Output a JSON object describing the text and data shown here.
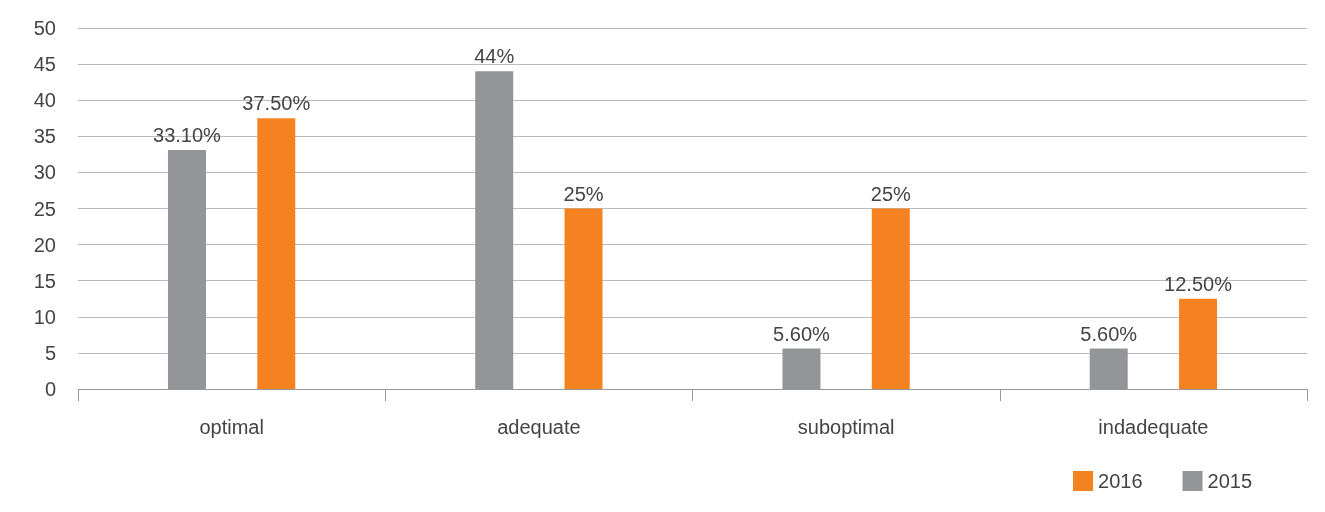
{
  "chart_data": {
    "type": "bar",
    "categories": [
      "optimal",
      "adequate",
      "suboptimal",
      "indadequate"
    ],
    "series": [
      {
        "name": "2015",
        "color": "#939598",
        "values": [
          33.1,
          44,
          5.6,
          5.6
        ],
        "value_labels": [
          "33.10%",
          "44%",
          "5.60%",
          "5.60%"
        ]
      },
      {
        "name": "2016",
        "color": "#f58220",
        "values": [
          37.5,
          25,
          25,
          12.5
        ],
        "value_labels": [
          "37.50%",
          "25%",
          "25%",
          "12.50%"
        ]
      }
    ],
    "ylim": [
      0,
      50
    ],
    "yticks": [
      0,
      5,
      10,
      15,
      20,
      25,
      30,
      35,
      40,
      45,
      50
    ],
    "grid": "y",
    "legend": "bottom right"
  }
}
